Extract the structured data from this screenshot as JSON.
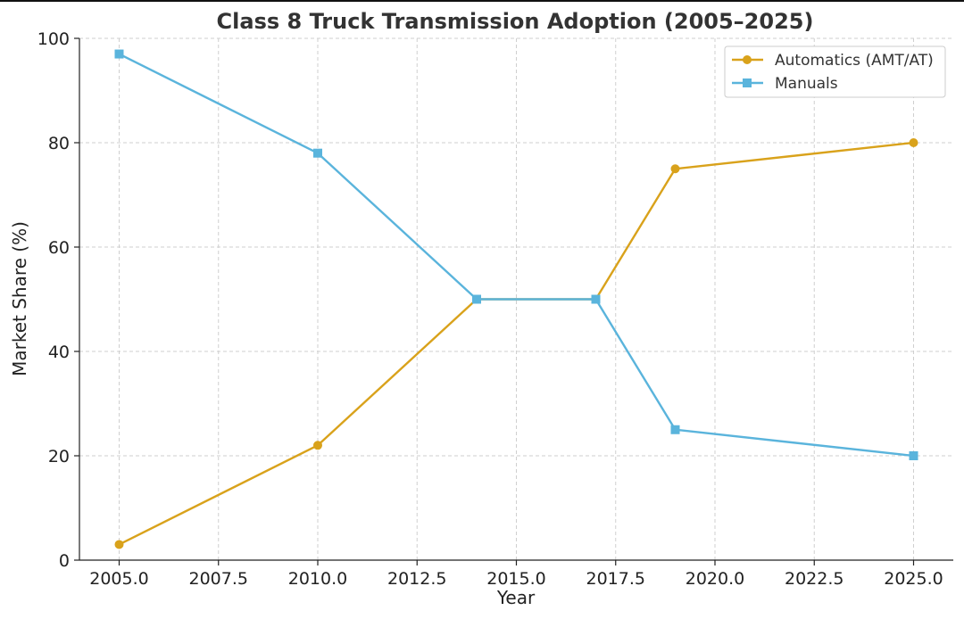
{
  "chart_data": {
    "type": "line",
    "title": "Class 8 Truck Transmission Adoption (2005–2025)",
    "xlabel": "Year",
    "ylabel": "Market Share (%)",
    "xlim": [
      2004.0,
      2026.0
    ],
    "ylim": [
      0,
      100
    ],
    "xticks": [
      2005.0,
      2007.5,
      2010.0,
      2012.5,
      2015.0,
      2017.5,
      2020.0,
      2022.5,
      2025.0
    ],
    "xtick_labels": [
      "2005.0",
      "2007.5",
      "2010.0",
      "2012.5",
      "2015.0",
      "2017.5",
      "2020.0",
      "2022.5",
      "2025.0"
    ],
    "yticks": [
      0,
      20,
      40,
      60,
      80,
      100
    ],
    "ytick_labels": [
      "0",
      "20",
      "40",
      "60",
      "80",
      "100"
    ],
    "grid": true,
    "legend_position": "top-right",
    "series": [
      {
        "name": "Automatics (AMT/AT)",
        "color": "#D9A21B",
        "marker": "circle",
        "x": [
          2005,
          2010,
          2014,
          2017,
          2019,
          2025
        ],
        "values": [
          3,
          22,
          50,
          50,
          75,
          80
        ]
      },
      {
        "name": "Manuals",
        "color": "#5AB4DC",
        "marker": "square",
        "x": [
          2005,
          2010,
          2014,
          2017,
          2019,
          2025
        ],
        "values": [
          97,
          78,
          50,
          50,
          25,
          20
        ]
      }
    ]
  }
}
